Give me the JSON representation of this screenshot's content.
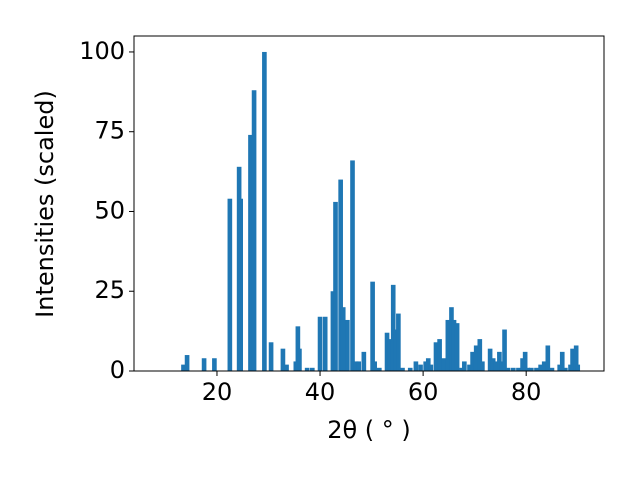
{
  "chart_data": {
    "type": "bar",
    "xlabel": "2θ ( ° )",
    "ylabel": "Intensities (scaled)",
    "color": "#1f77b4",
    "x": [
      13.5,
      14.2,
      17.5,
      19.5,
      22.5,
      24.3,
      24.6,
      26.5,
      27.2,
      29.2,
      30.5,
      32.8,
      33.5,
      35.3,
      35.7,
      36.0,
      37.5,
      38.5,
      40.0,
      41.0,
      42.5,
      43.0,
      44.0,
      44.5,
      45.3,
      46.3,
      47.0,
      47.5,
      48.5,
      50.2,
      50.6,
      51.5,
      53.0,
      53.6,
      54.2,
      54.8,
      55.2,
      56.0,
      57.5,
      58.6,
      59.5,
      60.5,
      61.0,
      61.5,
      62.5,
      63.2,
      64.0,
      64.8,
      65.5,
      66.0,
      66.6,
      67.5,
      68.0,
      69.0,
      69.6,
      70.3,
      71.0,
      71.5,
      73.0,
      73.6,
      74.2,
      74.8,
      75.3,
      75.8,
      76.5,
      77.5,
      78.5,
      79.3,
      79.8,
      80.3,
      81.0,
      82.0,
      82.8,
      83.5,
      84.2,
      85.0,
      86.5,
      87.0,
      87.6,
      88.6,
      89.0,
      89.7,
      90.0
    ],
    "values": [
      2,
      5,
      4,
      4,
      54,
      64,
      54,
      74,
      88,
      100,
      9,
      7,
      2,
      3,
      14,
      7,
      1,
      1,
      17,
      17,
      25,
      53,
      60,
      20,
      16,
      66,
      3,
      3,
      6,
      28,
      3,
      1,
      12,
      10,
      27,
      13,
      18,
      1,
      1,
      3,
      2,
      3,
      4,
      2,
      9,
      10,
      4,
      16,
      20,
      16,
      15,
      1,
      3,
      2,
      6,
      8,
      10,
      3,
      7,
      4,
      3,
      6,
      3,
      13,
      1,
      1,
      1,
      4,
      6,
      1,
      1,
      1,
      2,
      3,
      8,
      1,
      2,
      6,
      1,
      2,
      7,
      8,
      2
    ],
    "xlim": [
      3.9,
      95.1
    ],
    "ylim": [
      0,
      105
    ],
    "xticks": [
      20,
      40,
      60,
      80
    ],
    "yticks": [
      0,
      25,
      50,
      75,
      100
    ]
  }
}
